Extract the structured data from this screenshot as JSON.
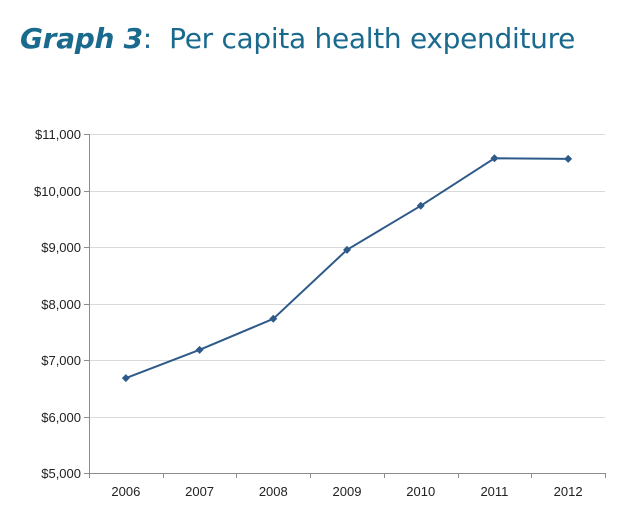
{
  "header": {
    "title_lead": "Graph 3",
    "title_sep": ":",
    "title_rest": "  Per capita health expenditure"
  },
  "colors": {
    "title": "#1a6a8e",
    "series_line": "#2e5a8a",
    "gridline": "#d9d9d9",
    "axis": "#8c8c8c"
  },
  "chart_data": {
    "type": "line",
    "title": "Graph 3: Per capita health expenditure",
    "xlabel": "",
    "ylabel": "",
    "categories": [
      "2006",
      "2007",
      "2008",
      "2009",
      "2010",
      "2011",
      "2012"
    ],
    "series": [
      {
        "name": "Per capita health expenditure",
        "values": [
          6680,
          7180,
          7730,
          8950,
          9730,
          10570,
          10560
        ],
        "marker": "diamond"
      }
    ],
    "ylim": [
      5000,
      11000
    ],
    "yticks": [
      5000,
      6000,
      7000,
      8000,
      9000,
      10000,
      11000
    ],
    "ytick_labels": [
      "$5,000",
      "$6,000",
      "$7,000",
      "$8,000",
      "$9,000",
      "$10,000",
      "$11,000"
    ],
    "grid": true,
    "legend": "none"
  }
}
